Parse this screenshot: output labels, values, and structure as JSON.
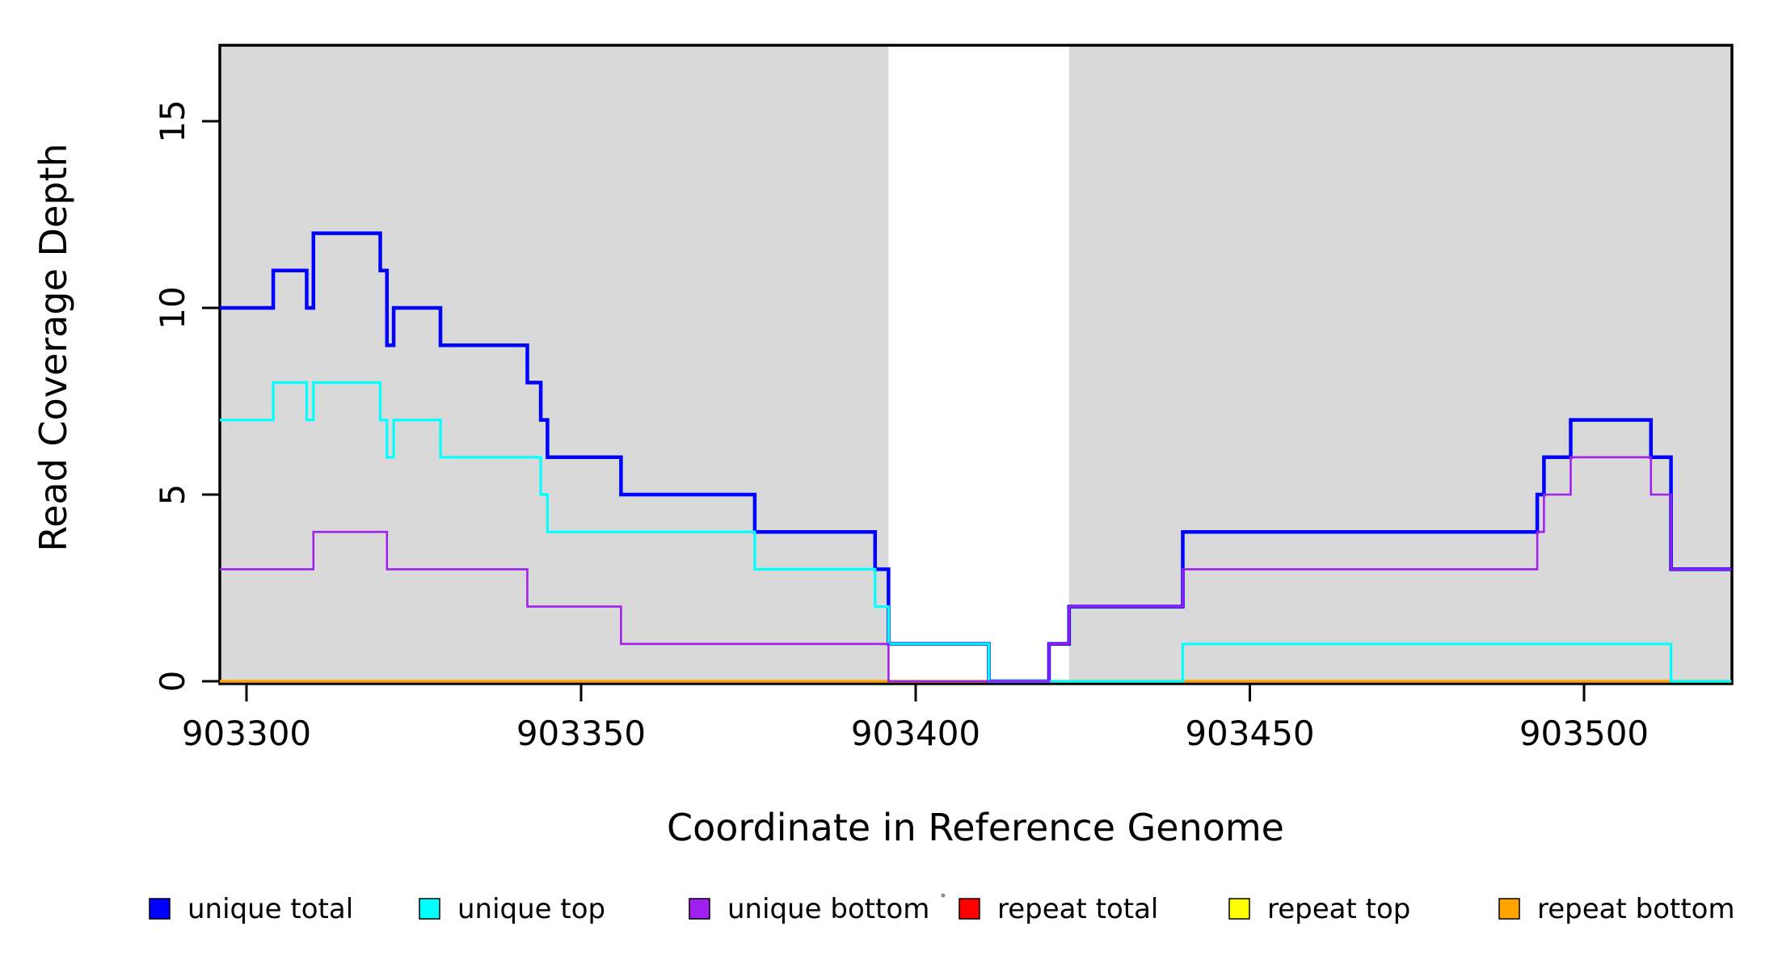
{
  "chart_data": {
    "type": "line",
    "subtype": "step-post",
    "title": "",
    "xlabel": "Coordinate in Reference Genome",
    "ylabel": "Read Coverage Depth",
    "xlim": [
      903296,
      903522
    ],
    "ylim": [
      0,
      17
    ],
    "grid": false,
    "background_color": "#FFFFFF",
    "plot_border_color": "#000000",
    "x_ticks": {
      "values": [
        903300,
        903350,
        903400,
        903450,
        903500
      ],
      "labels": [
        "903300",
        "903350",
        "903400",
        "903450",
        "903500"
      ]
    },
    "y_ticks": {
      "values": [
        0,
        5,
        10,
        15
      ],
      "labels": [
        "0",
        "5",
        "10",
        "15"
      ]
    },
    "shaded_regions": [
      {
        "from": 903296,
        "to": 903396,
        "color": "#D9D9D9"
      },
      {
        "from": 903423,
        "to": 903522,
        "color": "#D9D9D9"
      }
    ],
    "series": [
      {
        "name": "unique total",
        "color": "#0000FF",
        "line_width": 4.5,
        "points": [
          [
            903296,
            10
          ],
          [
            903304,
            11
          ],
          [
            903309,
            10
          ],
          [
            903310,
            12
          ],
          [
            903320,
            11
          ],
          [
            903321,
            9
          ],
          [
            903322,
            10
          ],
          [
            903329,
            9
          ],
          [
            903342,
            8
          ],
          [
            903344,
            7
          ],
          [
            903345,
            6
          ],
          [
            903356,
            5
          ],
          [
            903376,
            4
          ],
          [
            903394,
            3
          ],
          [
            903396,
            1
          ],
          [
            903411,
            0
          ],
          [
            903420,
            1
          ],
          [
            903423,
            2
          ],
          [
            903440,
            4
          ],
          [
            903493,
            5
          ],
          [
            903494,
            6
          ],
          [
            903498,
            7
          ],
          [
            903510,
            6
          ],
          [
            903513,
            3
          ]
        ]
      },
      {
        "name": "unique top",
        "color": "#00FFFF",
        "line_width": 3.2,
        "points": [
          [
            903296,
            7
          ],
          [
            903304,
            8
          ],
          [
            903309,
            7
          ],
          [
            903310,
            8
          ],
          [
            903320,
            7
          ],
          [
            903321,
            6
          ],
          [
            903322,
            7
          ],
          [
            903329,
            6
          ],
          [
            903344,
            5
          ],
          [
            903345,
            4
          ],
          [
            903376,
            3
          ],
          [
            903394,
            2
          ],
          [
            903396,
            1
          ],
          [
            903411,
            0
          ],
          [
            903440,
            1
          ],
          [
            903513,
            0
          ]
        ]
      },
      {
        "name": "unique bottom",
        "color": "#A020F0",
        "line_width": 2.6,
        "points": [
          [
            903296,
            3
          ],
          [
            903310,
            4
          ],
          [
            903321,
            3
          ],
          [
            903342,
            2
          ],
          [
            903356,
            1
          ],
          [
            903396,
            0
          ],
          [
            903420,
            1
          ],
          [
            903423,
            2
          ],
          [
            903440,
            3
          ],
          [
            903493,
            4
          ],
          [
            903494,
            5
          ],
          [
            903498,
            6
          ],
          [
            903510,
            5
          ],
          [
            903513,
            3
          ]
        ]
      },
      {
        "name": "repeat total",
        "color": "#FF0000",
        "line_width": 3,
        "points": [
          [
            903296,
            0
          ]
        ]
      },
      {
        "name": "repeat top",
        "color": "#FFFF00",
        "line_width": 3,
        "points": [
          [
            903296,
            0
          ]
        ]
      },
      {
        "name": "repeat bottom",
        "color": "#FFA500",
        "line_width": 3.6,
        "points": [
          [
            903296,
            0
          ]
        ]
      }
    ],
    "draw_order": [
      3,
      4,
      5,
      0,
      1,
      2
    ],
    "legend_position": "bottom"
  },
  "legend": {
    "items": [
      {
        "label": "unique total",
        "color": "#0000FF"
      },
      {
        "label": "unique top",
        "color": "#00FFFF"
      },
      {
        "label": "unique bottom",
        "color": "#A020F0"
      },
      {
        "label": "repeat total",
        "color": "#FF0000"
      },
      {
        "label": "repeat top",
        "color": "#FFFF00"
      },
      {
        "label": "repeat bottom",
        "color": "#FFA500"
      }
    ]
  }
}
